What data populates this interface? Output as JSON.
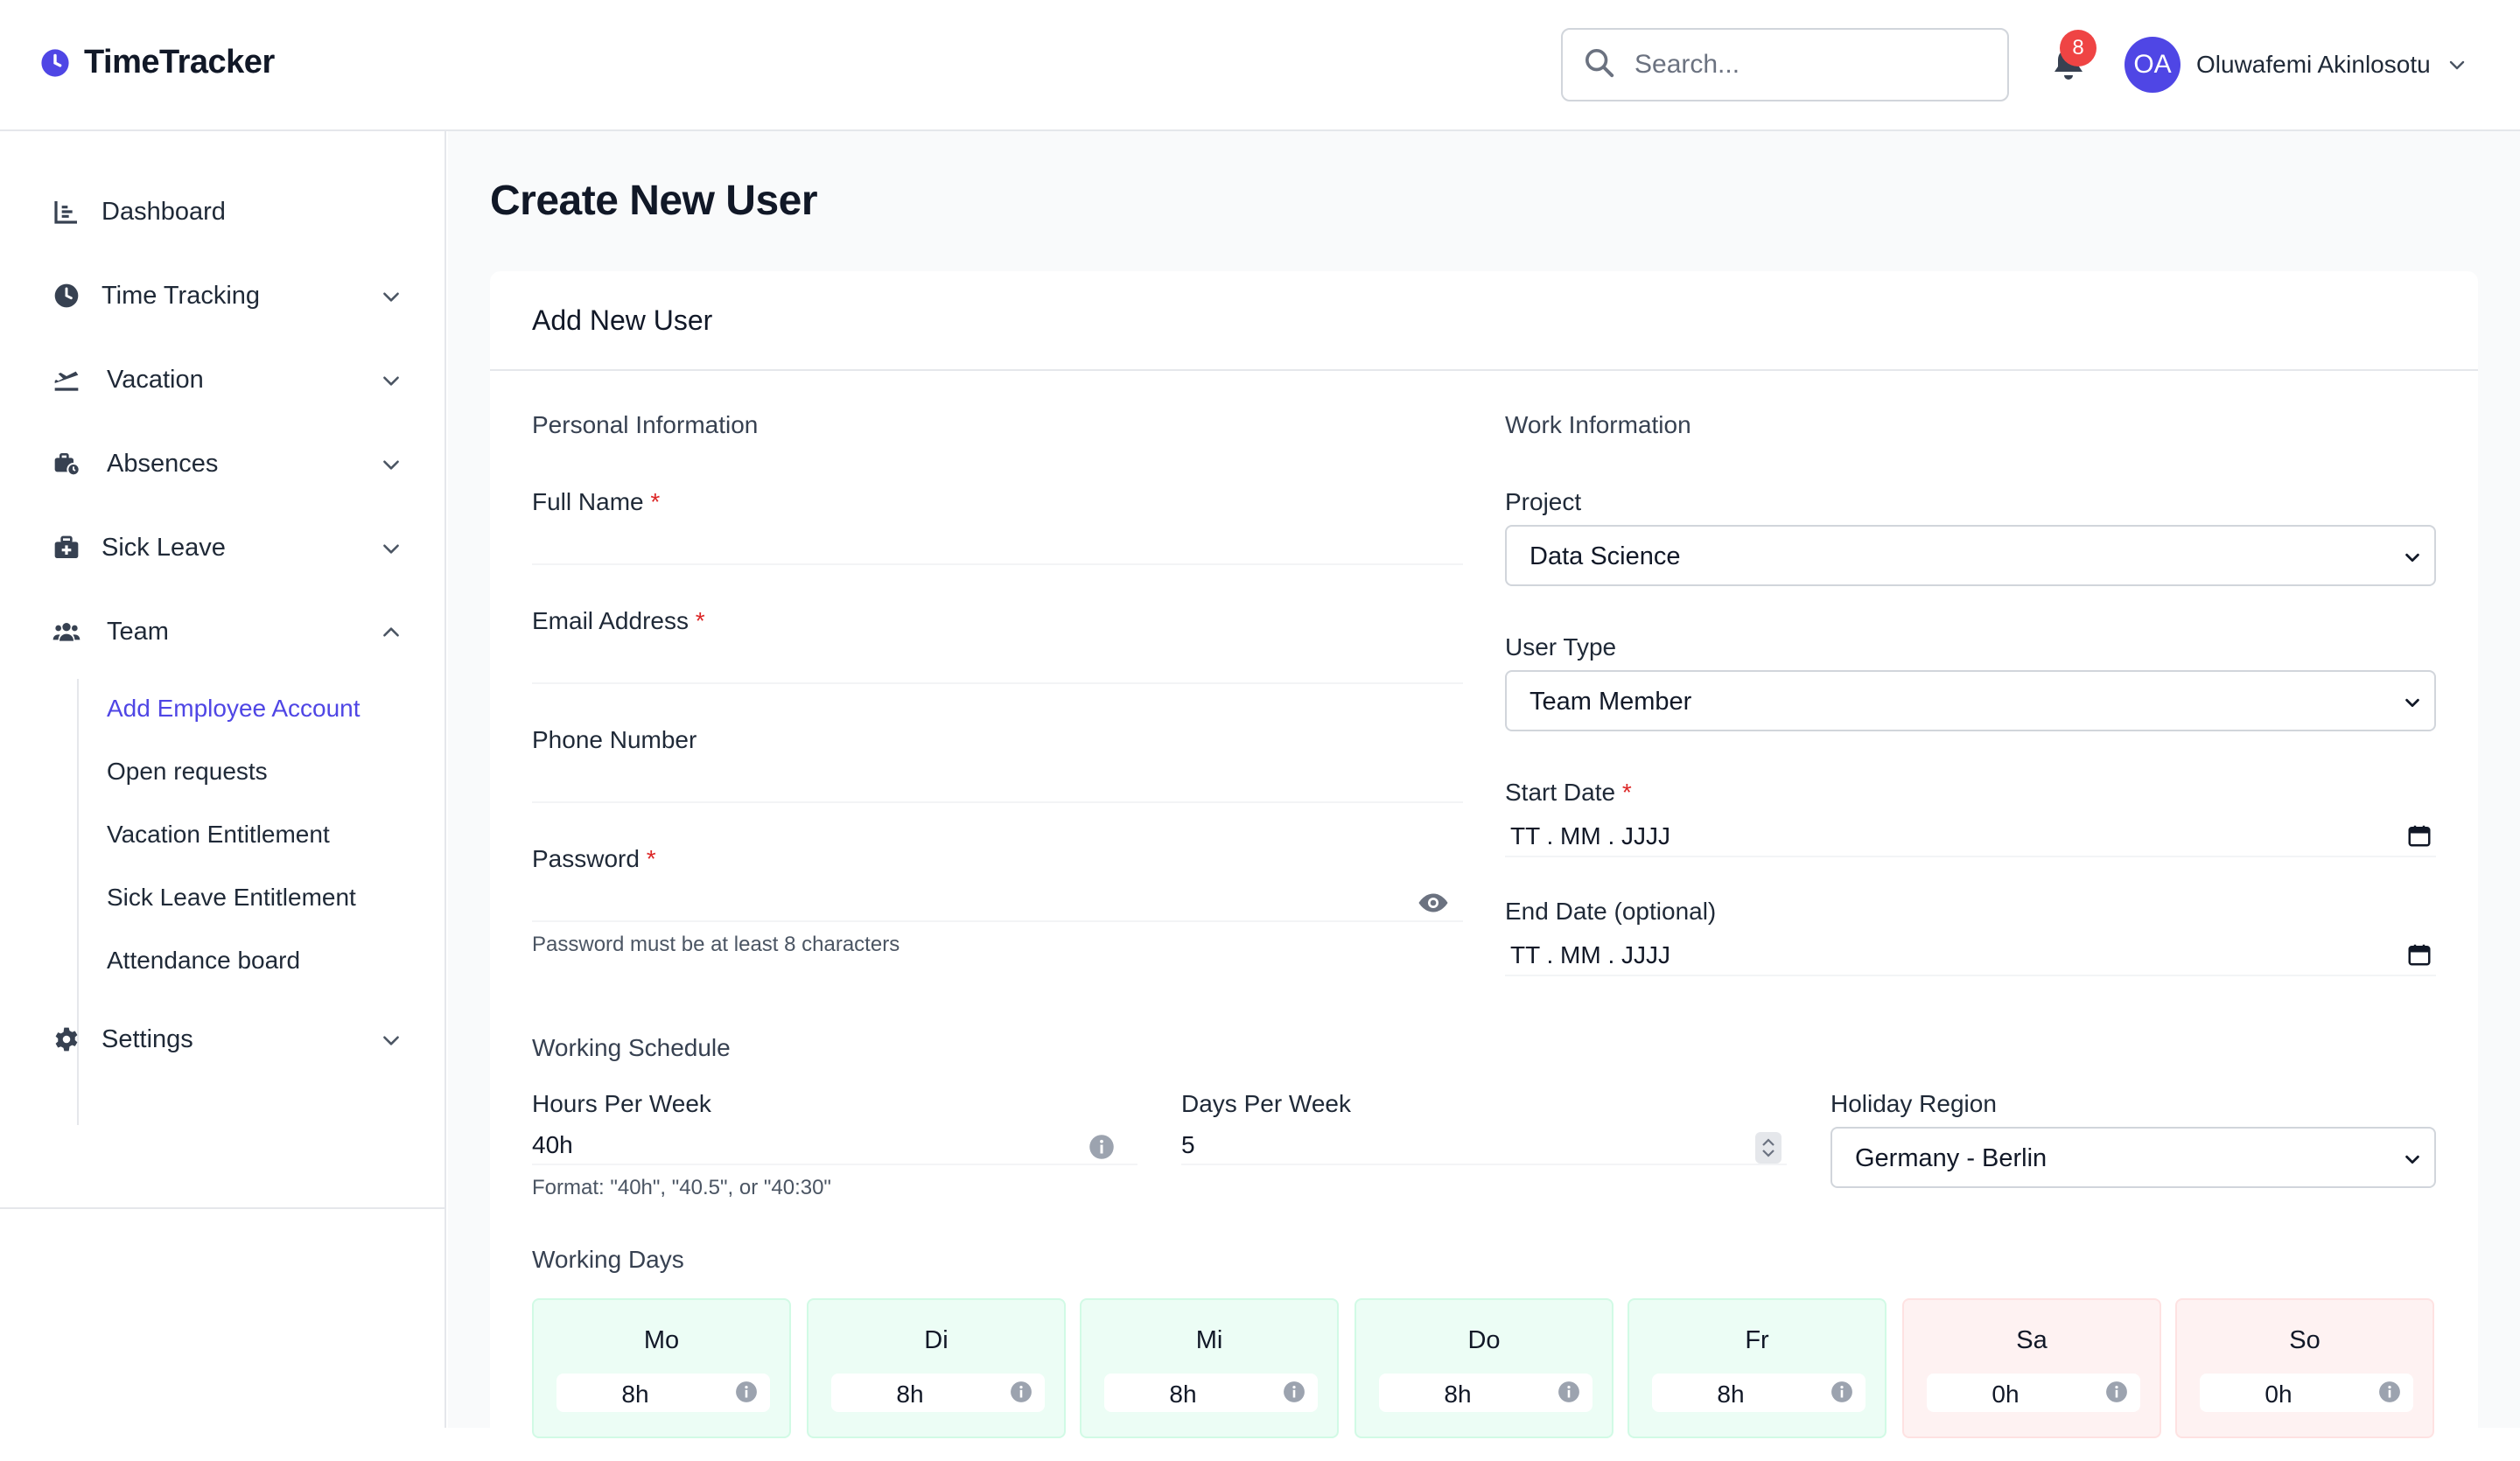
{
  "app": {
    "name": "TimeTracker"
  },
  "header": {
    "search_placeholder": "Search...",
    "notification_count": "8",
    "user_initials": "OA",
    "user_name": "Oluwafemi Akinlosotu"
  },
  "sidebar": {
    "items": [
      {
        "label": "Dashboard",
        "icon": "chart-icon"
      },
      {
        "label": "Time Tracking",
        "icon": "clock-icon"
      },
      {
        "label": "Vacation",
        "icon": "plane-icon"
      },
      {
        "label": "Absences",
        "icon": "suitcase-icon"
      },
      {
        "label": "Sick Leave",
        "icon": "medkit-icon"
      },
      {
        "label": "Team",
        "icon": "team-icon"
      },
      {
        "label": "Settings",
        "icon": "gear-icon"
      }
    ],
    "team_sub": [
      "Add Employee Account",
      "Open requests",
      "Vacation Entitlement",
      "Sick Leave Entitlement",
      "Attendance board"
    ]
  },
  "page": {
    "title": "Create New User"
  },
  "form": {
    "card_title": "Add New User",
    "personal_title": "Personal Information",
    "work_title": "Work Information",
    "full_name_label": "Full Name",
    "email_label": "Email Address",
    "phone_label": "Phone Number",
    "password_label": "Password",
    "password_hint": "Password must be at least 8 characters",
    "required_mark": "*",
    "project_label": "Project",
    "project_value": "Data Science",
    "user_type_label": "User Type",
    "user_type_value": "Team Member",
    "start_date_label": "Start Date",
    "start_date_value": "TT . MM . JJJJ",
    "end_date_label": "End Date (optional)",
    "end_date_value": "TT . MM . JJJJ",
    "schedule_title": "Working Schedule",
    "hours_label": "Hours Per Week",
    "hours_value": "40h",
    "hours_hint": "Format: \"40h\", \"40.5\", or \"40:30\"",
    "days_label": "Days Per Week",
    "days_value": "5",
    "region_label": "Holiday Region",
    "region_value": "Germany - Berlin",
    "working_days_title": "Working Days",
    "days": [
      {
        "name": "Mo",
        "hours": "8h",
        "working": true
      },
      {
        "name": "Di",
        "hours": "8h",
        "working": true
      },
      {
        "name": "Mi",
        "hours": "8h",
        "working": true
      },
      {
        "name": "Do",
        "hours": "8h",
        "working": true
      },
      {
        "name": "Fr",
        "hours": "8h",
        "working": true
      },
      {
        "name": "Sa",
        "hours": "0h",
        "working": false
      },
      {
        "name": "So",
        "hours": "0h",
        "working": false
      }
    ]
  },
  "colors": {
    "accent": "#4f46e5",
    "badge": "#ef4444",
    "required": "#dc2626",
    "workday_bg": "#ecfdf5",
    "offday_bg": "#fef2f2"
  }
}
